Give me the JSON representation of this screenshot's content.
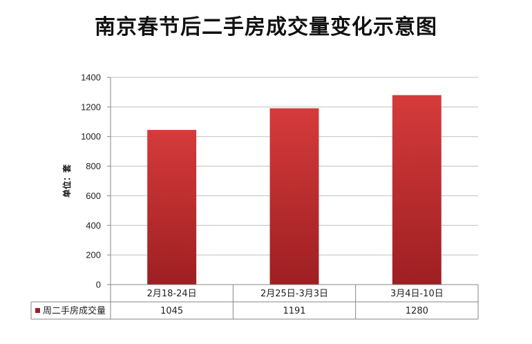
{
  "chart_data": {
    "type": "bar",
    "title": "南京春节后二手房成交量变化示意图",
    "ylabel": "单位：套",
    "xlabel": "",
    "categories": [
      "2月18-24日",
      "2月25日-3月3日",
      "3月4日-10日"
    ],
    "series": [
      {
        "name": "周二手房成交量",
        "values": [
          1045,
          1191,
          1280
        ]
      }
    ],
    "ylim": [
      0,
      1400
    ],
    "yticks": [
      0,
      200,
      400,
      600,
      800,
      1000,
      1200,
      1400
    ],
    "grid": true,
    "data_table": true,
    "legend": "data-table-left",
    "colors": {
      "bar_top": "#d53b3b",
      "bar_bottom": "#9e1f22",
      "grid": "#bfbfbf",
      "axis": "#868686"
    }
  }
}
